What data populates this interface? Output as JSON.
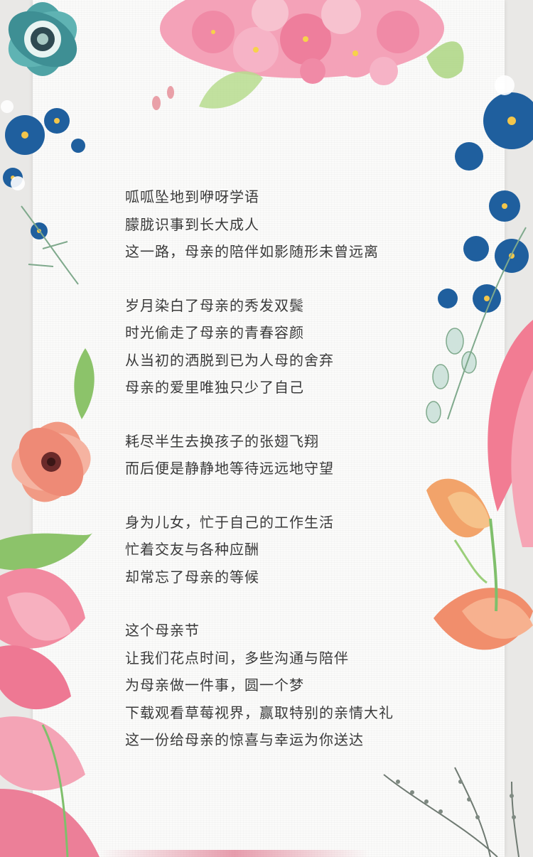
{
  "poem": {
    "stanzas": [
      [
        "呱呱坠地到咿呀学语",
        "朦胧识事到长大成人",
        "这一路，母亲的陪伴如影随形未曾远离"
      ],
      [
        "岁月染白了母亲的秀发双鬓",
        "时光偷走了母亲的青春容颜",
        "从当初的洒脱到已为人母的舍弃",
        "母亲的爱里唯独只少了自己"
      ],
      [
        "耗尽半生去换孩子的张翅飞翔",
        "而后便是静静地等待远远地守望"
      ],
      [
        "身为儿女，忙于自己的工作生活",
        "忙着交友与各种应酬",
        "却常忘了母亲的等候"
      ],
      [
        "这个母亲节",
        "让我们花点时间，多些沟通与陪伴",
        "为母亲做一件事，圆一个梦",
        "下载观看草莓视界，赢取特别的亲情大礼",
        "这一份给母亲的惊喜与幸运为你送达"
      ]
    ]
  },
  "decorations": {
    "icons": [
      "teal-anemone-icon",
      "pink-hydrangea-icon",
      "blue-forget-me-not-icon",
      "pink-poppy-icon",
      "pink-tulip-icon",
      "orange-lily-icon",
      "white-blossom-icon",
      "leaf-icon",
      "gray-sprig-icon"
    ],
    "colors": {
      "teal": "#4fa3a5",
      "blue": "#1f5f9e",
      "pink": "#f08aa6",
      "coral": "#f19a84",
      "orange": "#f0a160",
      "green": "#8cc36a"
    }
  }
}
